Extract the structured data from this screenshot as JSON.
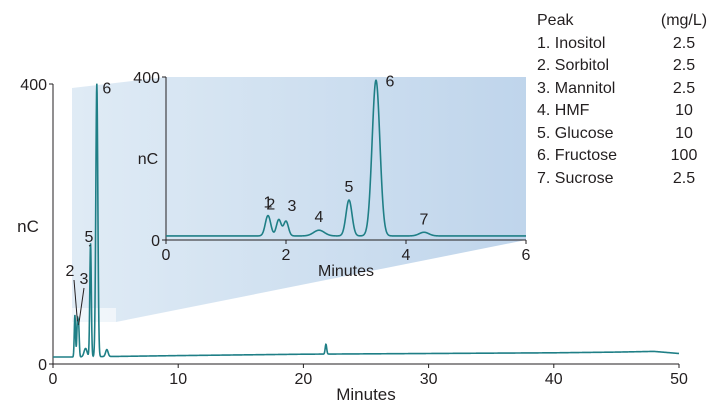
{
  "chart_data": [
    {
      "id": "main",
      "type": "line",
      "xlabel": "Minutes",
      "ylabel": "nC",
      "xlim": [
        0,
        50
      ],
      "ylim": [
        0,
        400
      ],
      "x_ticks": [
        "0",
        "10",
        "20",
        "30",
        "40",
        "50"
      ],
      "y_ticks": [
        "0",
        "400"
      ],
      "line_color": "#1f7f86",
      "baseline": [
        [
          0,
          10
        ],
        [
          1.6,
          10
        ],
        [
          10,
          12
        ],
        [
          20,
          14
        ],
        [
          30,
          15
        ],
        [
          40,
          16
        ],
        [
          45,
          17
        ],
        [
          48,
          18
        ],
        [
          50,
          15
        ]
      ],
      "peaks": [
        {
          "label": "1",
          "t": 1.75,
          "height": 60,
          "width": 0.05
        },
        {
          "label": "2",
          "t": 1.95,
          "height": 48,
          "width": 0.05
        },
        {
          "label": "3",
          "t": 2.05,
          "height": 42,
          "width": 0.05
        },
        {
          "label": "4",
          "t": 2.6,
          "height": 12,
          "width": 0.12
        },
        {
          "label": "5",
          "t": 3.0,
          "height": 162,
          "width": 0.06
        },
        {
          "label": "6",
          "t": 3.5,
          "height": 390,
          "width": 0.08
        },
        {
          "label": "7",
          "t": 4.3,
          "height": 10,
          "width": 0.1
        },
        {
          "label": "",
          "t": 21.8,
          "height": 14,
          "width": 0.06
        }
      ],
      "peak_labels": [
        "2",
        "3",
        "5",
        "6"
      ]
    },
    {
      "id": "inset",
      "type": "line",
      "xlabel": "Minutes",
      "ylabel": "nC",
      "xlim": [
        0,
        6
      ],
      "ylim": [
        0,
        400
      ],
      "x_ticks": [
        "0",
        "2",
        "4",
        "6"
      ],
      "y_ticks": [
        "0",
        "400"
      ],
      "line_color": "#1f7f86",
      "baseline": 10,
      "peaks": [
        {
          "label": "1",
          "t": 1.7,
          "height": 50,
          "width": 0.045
        },
        {
          "label": "2",
          "t": 1.88,
          "height": 40,
          "width": 0.04
        },
        {
          "label": "3",
          "t": 2.0,
          "height": 36,
          "width": 0.04
        },
        {
          "label": "4",
          "t": 2.55,
          "height": 14,
          "width": 0.09
        },
        {
          "label": "5",
          "t": 3.05,
          "height": 88,
          "width": 0.05
        },
        {
          "label": "6",
          "t": 3.5,
          "height": 382,
          "width": 0.065
        },
        {
          "label": "7",
          "t": 4.3,
          "height": 9,
          "width": 0.08
        }
      ],
      "peak_labels": [
        "1",
        "2",
        "3",
        "4",
        "5",
        "6",
        "7"
      ]
    }
  ],
  "peak_table": {
    "header": {
      "name": "Peak",
      "conc": "(mg/L)"
    },
    "rows": [
      {
        "name": "1. Inositol",
        "conc": "2.5"
      },
      {
        "name": "2. Sorbitol",
        "conc": "2.5"
      },
      {
        "name": "3. Mannitol",
        "conc": "2.5"
      },
      {
        "name": "4. HMF",
        "conc": "10"
      },
      {
        "name": "5. Glucose",
        "conc": "10"
      },
      {
        "name": "6. Fructose",
        "conc": "100"
      },
      {
        "name": "7. Sucrose",
        "conc": "2.5"
      }
    ]
  }
}
